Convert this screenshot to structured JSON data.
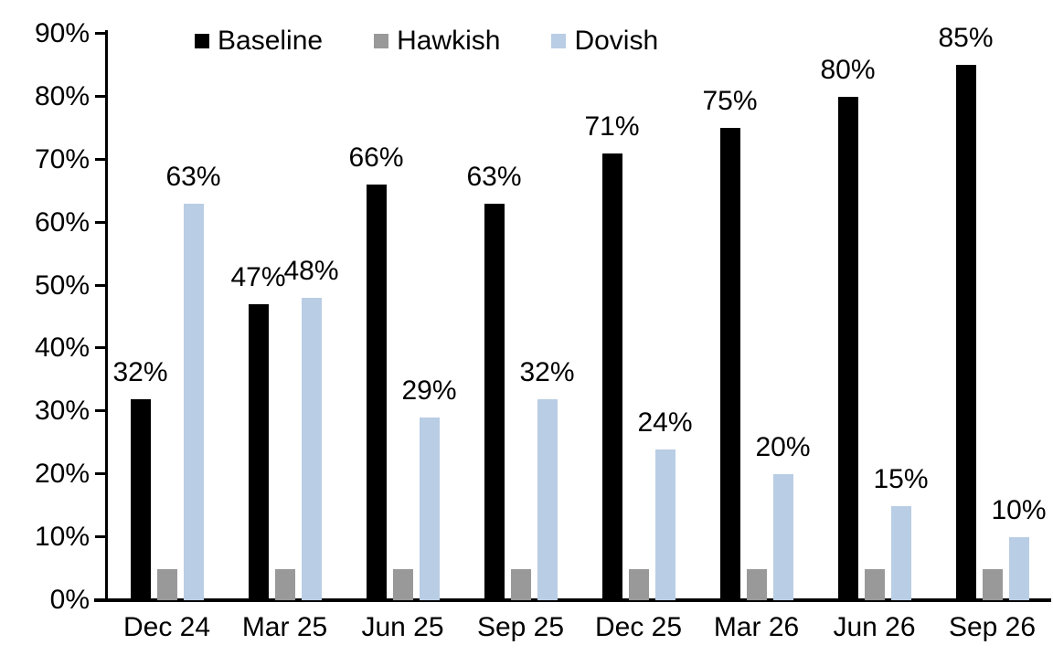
{
  "chart_data": {
    "type": "bar",
    "title": "",
    "xlabel": "",
    "ylabel": "",
    "categories": [
      "Dec 24",
      "Mar 25",
      "Jun 25",
      "Sep 25",
      "Dec 25",
      "Mar 26",
      "Jun 26",
      "Sep 26"
    ],
    "series": [
      {
        "name": "Baseline",
        "color": "#000000",
        "values": [
          32,
          47,
          66,
          63,
          71,
          75,
          80,
          85
        ],
        "labels": [
          "32%",
          "47%",
          "66%",
          "63%",
          "71%",
          "75%",
          "80%",
          "85%"
        ],
        "show_labels": true
      },
      {
        "name": "Hawkish",
        "color": "#999999",
        "values": [
          5,
          5,
          5,
          5,
          5,
          5,
          5,
          5
        ],
        "labels": [
          "",
          "",
          "",
          "",
          "",
          "",
          "",
          ""
        ],
        "show_labels": false
      },
      {
        "name": "Dovish",
        "color": "#B9CDE4",
        "values": [
          63,
          48,
          29,
          32,
          24,
          20,
          15,
          10
        ],
        "labels": [
          "63%",
          "48%",
          "29%",
          "32%",
          "24%",
          "20%",
          "15%",
          "10%"
        ],
        "show_labels": true
      }
    ],
    "ylim": [
      0,
      90
    ],
    "ytick_step": 10,
    "ytick_labels": [
      "0%",
      "10%",
      "20%",
      "30%",
      "40%",
      "50%",
      "60%",
      "70%",
      "80%",
      "90%"
    ],
    "legend_position": "top",
    "grid": false,
    "axis_color": "#000000",
    "background_color": "#FFFFFF"
  }
}
